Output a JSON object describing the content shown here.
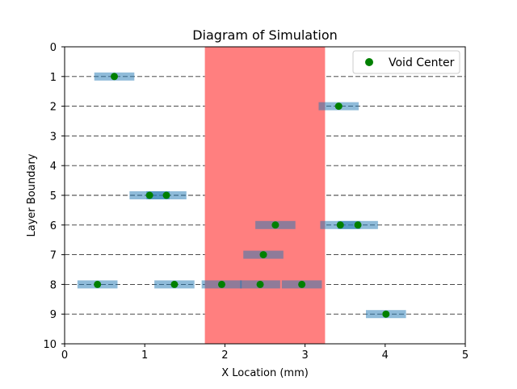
{
  "chart_data": {
    "type": "scatter",
    "title": "Diagram of Simulation",
    "xlabel": "X Location (mm)",
    "ylabel": "Layer Boundary",
    "xlim": [
      0,
      5
    ],
    "ylim": [
      10,
      0
    ],
    "y_inverted": true,
    "xticks": [
      "0",
      "1",
      "2",
      "3",
      "4",
      "5"
    ],
    "yticks": [
      "0",
      "1",
      "2",
      "3",
      "4",
      "5",
      "6",
      "7",
      "8",
      "9",
      "10"
    ],
    "layer_lines": [
      1,
      2,
      3,
      4,
      5,
      6,
      7,
      8,
      9
    ],
    "highlight_region": {
      "x_start": 1.75,
      "x_end": 3.25,
      "color": "#ff7f7f"
    },
    "void_width": 0.5,
    "series": [
      {
        "name": "Void Center",
        "color": "#008000",
        "points": [
          {
            "x": 0.62,
            "y": 1
          },
          {
            "x": 3.42,
            "y": 2
          },
          {
            "x": 1.06,
            "y": 5
          },
          {
            "x": 1.27,
            "y": 5
          },
          {
            "x": 2.63,
            "y": 6
          },
          {
            "x": 3.44,
            "y": 6
          },
          {
            "x": 3.66,
            "y": 6
          },
          {
            "x": 2.48,
            "y": 7
          },
          {
            "x": 0.41,
            "y": 8
          },
          {
            "x": 1.37,
            "y": 8
          },
          {
            "x": 1.96,
            "y": 8
          },
          {
            "x": 2.44,
            "y": 8
          },
          {
            "x": 2.96,
            "y": 8
          },
          {
            "x": 4.01,
            "y": 9
          }
        ]
      }
    ],
    "void_bar_color": "#1f77b4",
    "legend_placement": "top-right",
    "grid": false
  }
}
